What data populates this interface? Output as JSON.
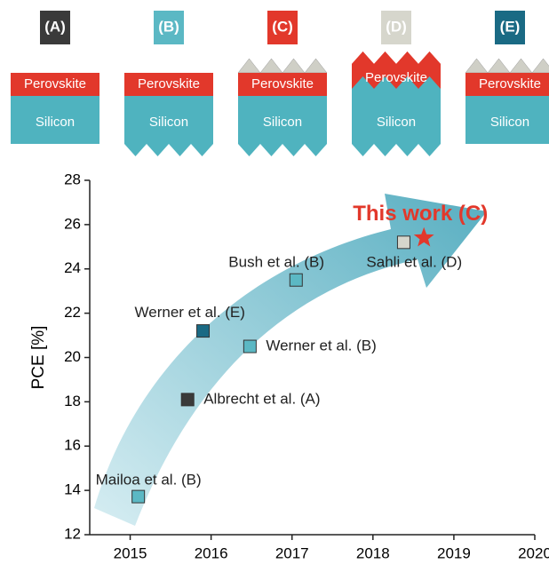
{
  "panels": [
    {
      "label": "(A)",
      "color": "#3a3a3a",
      "top_layer": "Perovskite",
      "bottom_layer": "Silicon"
    },
    {
      "label": "(B)",
      "color": "#5bb8c4",
      "top_layer": "Perovskite",
      "bottom_layer": "Silicon"
    },
    {
      "label": "(C)",
      "color": "#e2382b",
      "top_layer": "Perovskite",
      "bottom_layer": "Silicon"
    },
    {
      "label": "(D)",
      "color": "#d6d6cc",
      "top_layer": "Perovskite",
      "bottom_layer": "Silicon"
    },
    {
      "label": "(E)",
      "color": "#1a6a84",
      "top_layer": "Perovskite",
      "bottom_layer": "Silicon"
    }
  ],
  "chart_data": {
    "type": "scatter",
    "y_label": "PCE [%]",
    "x": [
      2015.1,
      2015.71,
      2015.9,
      2016.48,
      2017.05,
      2018.38
    ],
    "values": [
      13.72,
      18.1,
      21.2,
      20.5,
      23.5,
      25.2
    ],
    "point_labels": [
      "Mailoa et al. (B)",
      "Albrecht et al. (A)",
      "Werner et al. (E)",
      "Werner et al. (B)",
      "Bush et al. (B)",
      "Sahli et al. (D)"
    ],
    "colors": [
      "#5bb8c4",
      "#3a3a3a",
      "#1a6a84",
      "#5bb8c4",
      "#5bb8c4",
      "#d6d6cc"
    ],
    "highlight": {
      "label": "This work (C)",
      "x": 2018.63,
      "y": 25.4,
      "color": "#e2382b"
    },
    "xlim": [
      2014.5,
      2020
    ],
    "xticks": [
      2015,
      2016,
      2017,
      2018,
      2019,
      2020
    ],
    "ylim": [
      12,
      28
    ],
    "yticks": [
      12,
      14,
      16,
      18,
      20,
      22,
      24,
      26,
      28
    ]
  }
}
